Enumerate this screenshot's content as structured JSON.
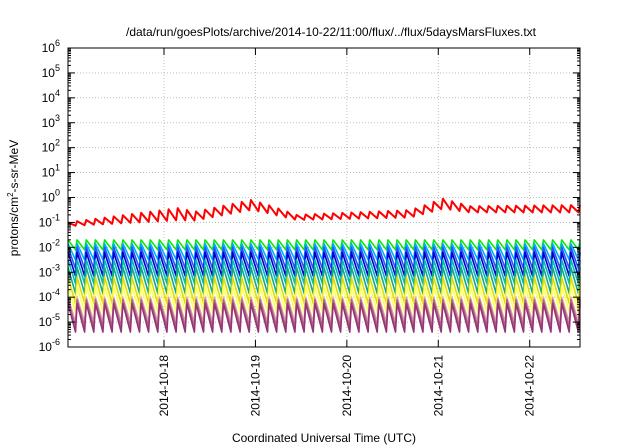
{
  "chart_data": {
    "type": "line",
    "title": "/data/run/goesPlots/archive/2014-10-22/11:00/flux/../flux/5daysMarsFluxes.txt",
    "xlabel": "Coordinated Universal Time (UTC)",
    "ylabel": {
      "base": "protons/cm",
      "sup": "2",
      "rest": "-s-sr-MeV"
    },
    "y_scale": "log",
    "ylim_exp": [
      -6,
      6
    ],
    "y_tick_exponents": [
      -6,
      -5,
      -4,
      -3,
      -2,
      -1,
      0,
      1,
      2,
      3,
      4,
      5,
      6
    ],
    "xlim_days": [
      -1.05,
      4.55
    ],
    "x_ticks": [
      {
        "label": "2014-10-18",
        "day": 0
      },
      {
        "label": "2014-10-19",
        "day": 1
      },
      {
        "label": "2014-10-20",
        "day": 2
      },
      {
        "label": "2014-10-21",
        "day": 3
      },
      {
        "label": "2014-10-22",
        "day": 4
      }
    ],
    "grid": true,
    "legend": "none",
    "sawtooth_period_days": 0.1,
    "series": [
      {
        "color": "#ff0000",
        "nodes_days": [
          -1.05,
          0.2,
          0.3,
          0.95,
          1.1,
          1.45,
          2.7,
          3.05,
          3.35,
          4.55
        ],
        "top_log10": [
          -1.0,
          -0.4,
          -0.6,
          -0.1,
          -0.25,
          -0.7,
          -0.5,
          -0.05,
          -0.35,
          -0.3
        ],
        "bottom_log10": [
          -1.15,
          -0.9,
          -0.95,
          -0.5,
          -0.6,
          -0.9,
          -0.8,
          -0.45,
          -0.6,
          -0.6
        ]
      },
      {
        "color": "#00ee00",
        "top_log10": -1.7,
        "bottom_log10": -2.1
      },
      {
        "color": "#00aaff",
        "top_log10": -1.85,
        "bottom_log10": -2.5
      },
      {
        "color": "#2255ff",
        "top_log10": -2.0,
        "bottom_log10": -2.85
      },
      {
        "color": "#0000cc",
        "top_log10": -2.2,
        "bottom_log10": -3.15
      },
      {
        "color": "#00bbbb",
        "top_log10": -2.5,
        "bottom_log10": -3.45
      },
      {
        "color": "#11aa88",
        "top_log10": -2.8,
        "bottom_log10": -3.85
      },
      {
        "color": "#dddd00",
        "top_log10": -3.2,
        "bottom_log10": -4.25
      },
      {
        "color": "#ffff55",
        "top_log10": -3.55,
        "bottom_log10": -4.6
      },
      {
        "color": "#ddaaaa",
        "top_log10": -4.0,
        "bottom_log10": -5.0
      },
      {
        "color": "#aa6688",
        "top_log10": -4.1,
        "bottom_log10": -5.2
      },
      {
        "color": "#993377",
        "top_log10": -4.25,
        "bottom_log10": -5.4
      }
    ]
  }
}
